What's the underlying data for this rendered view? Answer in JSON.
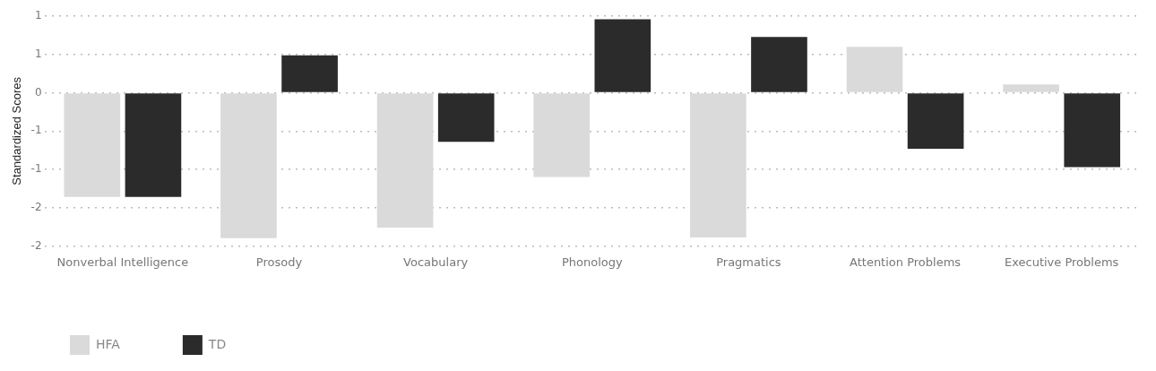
{
  "chart_data": {
    "type": "bar",
    "ylabel": "Standardized Scores",
    "categories": [
      "Nonverbal Intelligence",
      "Prosody",
      "Vocabulary",
      "Phonology",
      "Pragmatics",
      "Attention Problems",
      "Executive Problems"
    ],
    "series": [
      {
        "name": "HFA",
        "color": "#dadada",
        "values": [
          -1.36,
          -1.9,
          -1.76,
          -1.1,
          -1.89,
          0.6,
          0.11
        ]
      },
      {
        "name": "TD",
        "color": "#2b2b2b",
        "values": [
          -1.36,
          0.49,
          -0.64,
          0.96,
          0.73,
          -0.73,
          -0.97
        ]
      }
    ],
    "ylim": [
      -2,
      1
    ],
    "yticks": [
      {
        "value": -2,
        "label": "-2"
      },
      {
        "value": -1.5,
        "label": "-2"
      },
      {
        "value": -1,
        "label": "-1"
      },
      {
        "value": -0.5,
        "label": "-1"
      },
      {
        "value": 0,
        "label": "0"
      },
      {
        "value": 0.5,
        "label": "1"
      },
      {
        "value": 1,
        "label": "1"
      }
    ],
    "grid": "y",
    "legend": "bottom left"
  }
}
